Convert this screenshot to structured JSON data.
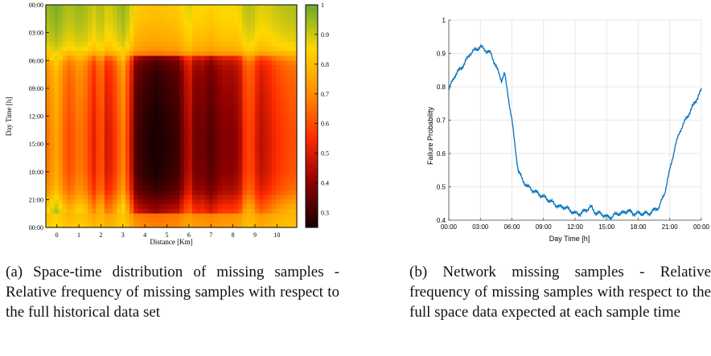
{
  "chart_data": [
    {
      "type": "heatmap",
      "title": "",
      "xlabel": "Distance [Km]",
      "ylabel": "Day Time [h]",
      "x_ticks": [
        "0",
        "1",
        "2",
        "3",
        "4",
        "5",
        "6",
        "7",
        "8",
        "9",
        "10"
      ],
      "y_ticks": [
        "00:00",
        "03:00",
        "06:00",
        "09:00",
        "12:00",
        "15:00",
        "18:00",
        "21:00",
        "00:00"
      ],
      "xlim": [
        -0.5,
        10.9
      ],
      "ylim_hours": [
        0,
        24
      ],
      "colorbar": {
        "min": 0.25,
        "max": 1.0,
        "ticks": [
          "0.3",
          "0.4",
          "0.5",
          "0.6",
          "0.7",
          "0.8",
          "0.9",
          "1"
        ],
        "tick_values": [
          0.3,
          0.4,
          0.5,
          0.6,
          0.7,
          0.8,
          0.9,
          1.0
        ]
      },
      "colors": {
        "low": "#1a0000",
        "mid_low": "#8b0000",
        "mid": "#ff2a00",
        "mid_high": "#ff8c00",
        "high_mid": "#ffd800",
        "high": "#6aa830"
      },
      "time_profile_hours": [
        0,
        2,
        4,
        5,
        5.5,
        6,
        7,
        9,
        12,
        15,
        18,
        20,
        21,
        22,
        23,
        24
      ],
      "time_profile_values": [
        0.92,
        0.9,
        0.86,
        0.82,
        0.74,
        0.66,
        0.62,
        0.6,
        0.58,
        0.57,
        0.58,
        0.62,
        0.68,
        0.74,
        0.78,
        0.8
      ],
      "distance_profile_km": [
        -0.5,
        0,
        0.4,
        0.6,
        1,
        1.3,
        1.7,
        2,
        2.3,
        2.6,
        3,
        3.3,
        3.6,
        4,
        4.5,
        5,
        5.5,
        6,
        6.3,
        6.6,
        7,
        7.5,
        8,
        8.3,
        8.6,
        8.9,
        9.2,
        9.6,
        10,
        10.5,
        10.9
      ],
      "distance_profile_offsets": [
        0.08,
        0.18,
        0.05,
        0.02,
        0.1,
        0.06,
        -0.06,
        0.06,
        -0.1,
        -0.02,
        0.12,
        -0.04,
        -0.26,
        -0.3,
        -0.33,
        -0.3,
        -0.28,
        -0.1,
        -0.22,
        -0.2,
        -0.25,
        -0.18,
        -0.18,
        -0.15,
        0.02,
        0.0,
        -0.12,
        -0.08,
        -0.02,
        0.02,
        0.04
      ]
    },
    {
      "type": "line",
      "title": "",
      "xlabel": "Day Time [h]",
      "ylabel": "Failure Probability",
      "x_ticks": [
        "00:00",
        "03:00",
        "06:00",
        "09:00",
        "12:00",
        "15:00",
        "18:00",
        "21:00",
        "00:00"
      ],
      "y_ticks": [
        "0.4",
        "0.5",
        "0.6",
        "0.7",
        "0.8",
        "0.9",
        "1"
      ],
      "xlim_hours": [
        0,
        24
      ],
      "ylim": [
        0.4,
        1.0
      ],
      "line_color": "#0072bd",
      "series": [
        {
          "x_hours": [
            0,
            0.5,
            1,
            1.5,
            2,
            2.5,
            3,
            3.5,
            4,
            4.5,
            5,
            5.3,
            5.5,
            5.8,
            6,
            6.3,
            6.6,
            7,
            7.5,
            8,
            8.5,
            9,
            9.5,
            10,
            10.5,
            11,
            11.5,
            12,
            12.5,
            13,
            13.5,
            14,
            14.5,
            15,
            15.5,
            16,
            16.5,
            17,
            17.5,
            18,
            18.5,
            19,
            19.5,
            20,
            20.5,
            21,
            21.5,
            22,
            22.5,
            23,
            23.5,
            24
          ],
          "values": [
            0.79,
            0.83,
            0.85,
            0.87,
            0.9,
            0.91,
            0.92,
            0.91,
            0.9,
            0.86,
            0.82,
            0.84,
            0.8,
            0.74,
            0.7,
            0.62,
            0.55,
            0.52,
            0.5,
            0.49,
            0.48,
            0.47,
            0.46,
            0.45,
            0.44,
            0.44,
            0.43,
            0.42,
            0.42,
            0.43,
            0.44,
            0.42,
            0.42,
            0.41,
            0.41,
            0.42,
            0.42,
            0.43,
            0.42,
            0.42,
            0.42,
            0.42,
            0.43,
            0.44,
            0.48,
            0.55,
            0.62,
            0.67,
            0.7,
            0.73,
            0.76,
            0.79
          ]
        }
      ]
    }
  ],
  "captions": {
    "a": "(a) Space-time distribution of missing samples - Relative frequency of missing samples with respect to the full historical data set",
    "b": "(b) Network missing samples - Relative frequency of missing samples with respect to the full space data expected at each sample time"
  }
}
